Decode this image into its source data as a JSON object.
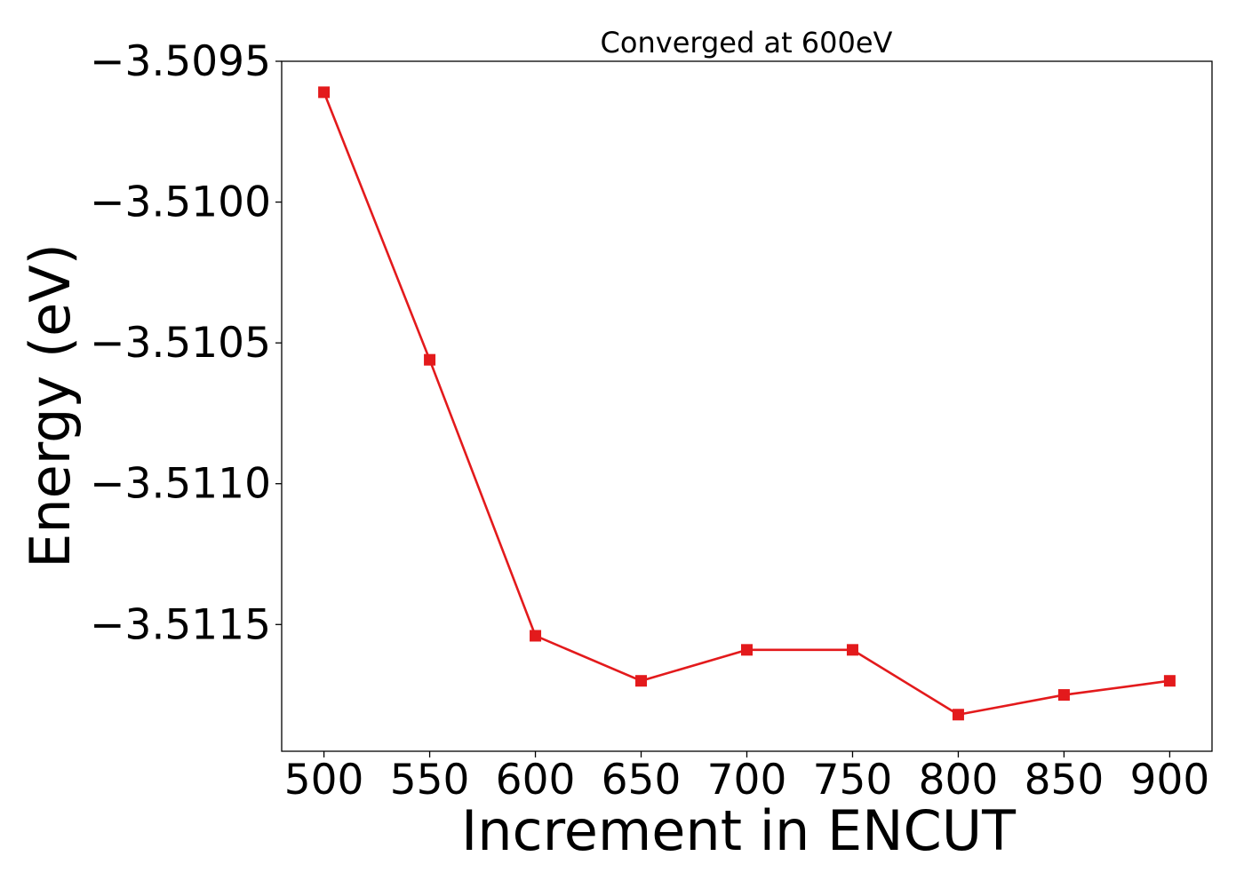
{
  "chart_data": {
    "type": "line",
    "title": "Converged at 600eV",
    "xlabel": "Increment in ENCUT",
    "ylabel": "Energy (eV)",
    "x": [
      500,
      550,
      600,
      650,
      700,
      750,
      800,
      850,
      900
    ],
    "series": [
      {
        "values": [
          -3.50961,
          -3.51056,
          -3.51154,
          -3.5117,
          -3.51159,
          -3.51159,
          -3.51182,
          -3.51175,
          -3.5117
        ],
        "color": "#e31a1c",
        "marker": "square"
      }
    ],
    "xticks": [
      500,
      550,
      600,
      650,
      700,
      750,
      800,
      850,
      900
    ],
    "xtick_labels": [
      "500",
      "550",
      "600",
      "650",
      "700",
      "750",
      "800",
      "850",
      "900"
    ],
    "yticks": [
      -3.5095,
      -3.51,
      -3.5105,
      -3.511,
      -3.5115
    ],
    "ytick_labels": [
      "−3.5095",
      "−3.5100",
      "−3.5105",
      "−3.5110",
      "−3.5115"
    ],
    "xlim": [
      480,
      920
    ],
    "ylim": [
      -3.51195,
      -3.5095
    ],
    "grid": false,
    "legend": "none"
  }
}
